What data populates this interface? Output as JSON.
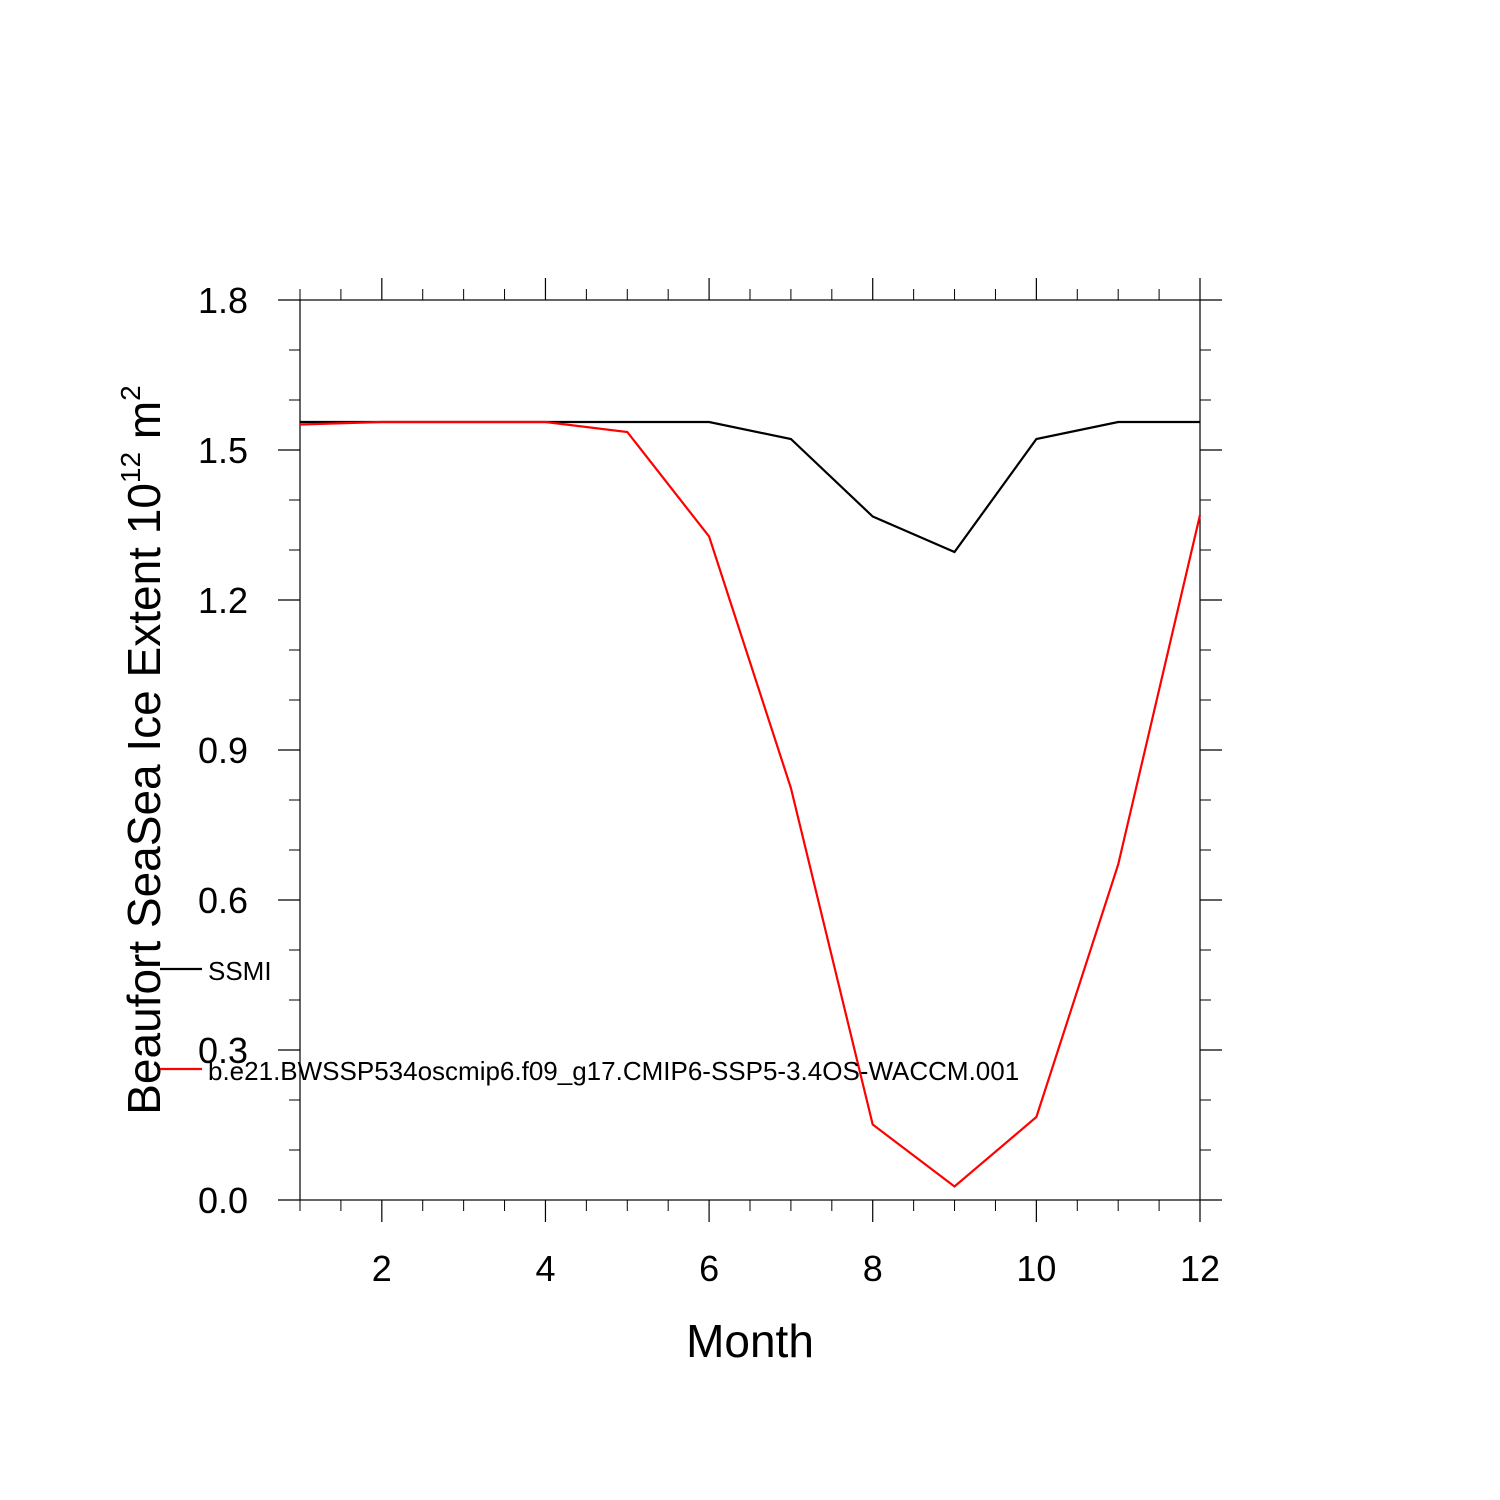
{
  "chart_data": {
    "type": "line",
    "title": "",
    "xlabel": "Month",
    "ylabel": "Beaufort SeaSea Ice Extent 10",
    "ylabel_superscript": "12",
    "ylabel_unit": "m",
    "ylabel_unit_superscript": "2",
    "xlim": [
      1,
      12
    ],
    "ylim": [
      0,
      1.8
    ],
    "x_ticks": [
      2,
      4,
      6,
      8,
      10,
      12
    ],
    "x_tick_labels": [
      "2",
      "4",
      "6",
      "8",
      "10",
      "12"
    ],
    "y_ticks": [
      0,
      0.3,
      0.6,
      0.9,
      1.2,
      1.5,
      1.8
    ],
    "y_tick_labels": [
      "0.0",
      "0.3",
      "0.6",
      "0.9",
      "1.2",
      "1.5",
      "1.8"
    ],
    "x": [
      1,
      2,
      3,
      4,
      5,
      6,
      7,
      8,
      9,
      10,
      11,
      12
    ],
    "series": [
      {
        "name": "SSMI",
        "color": "#000000",
        "values": [
          1.556,
          1.556,
          1.556,
          1.556,
          1.556,
          1.556,
          1.522,
          1.367,
          1.296,
          1.522,
          1.556,
          1.556
        ]
      },
      {
        "name": "b.e21.BWSSP534oscmip6.f09_g17.CMIP6-SSP5-3.4OS-WACCM.001",
        "color": "#ff0000",
        "values": [
          1.551,
          1.556,
          1.556,
          1.556,
          1.536,
          1.327,
          0.824,
          0.151,
          0.027,
          0.166,
          0.671,
          1.37
        ]
      }
    ],
    "grid": false,
    "legend_position": "lower-left"
  }
}
